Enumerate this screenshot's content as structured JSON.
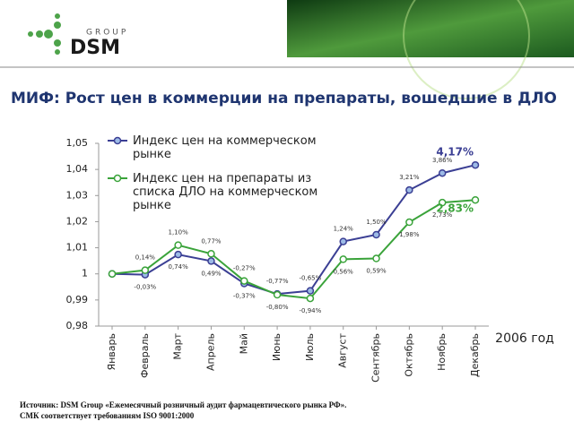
{
  "header": {
    "logo_small": "GROUP",
    "logo_big": "DSM"
  },
  "chart_data": {
    "type": "line",
    "title": "МИФ: Рост цен в коммерции на препараты, вошедшие в ДЛО",
    "categories": [
      "Январь",
      "Февраль",
      "Март",
      "Апрель",
      "Май",
      "Июнь",
      "Июль",
      "Август",
      "Сентябрь",
      "Октябрь",
      "Ноябрь",
      "Декабрь"
    ],
    "series": [
      {
        "name": "Индекс цен на коммерческом рынке",
        "color": "#3b3f94",
        "marker_fill": "#9dbbe6",
        "values": [
          1.0,
          0.9997,
          1.0074,
          1.0049,
          0.9963,
          0.9923,
          0.9935,
          1.0124,
          1.015,
          1.0321,
          1.0386,
          1.0417
        ],
        "value_labels": [
          null,
          "-0,03%",
          "0,74%",
          "0,49%",
          "-0,37%",
          "-0,77%",
          "-0,65%",
          "1,24%",
          "1,50%",
          "3,21%",
          "3,86%",
          "4,17%"
        ]
      },
      {
        "name": "Индекс цен на препараты из списка ДЛО на коммерческом рынке",
        "color": "#3aa33a",
        "marker_fill": "#ffffff",
        "values": [
          1.0,
          1.0014,
          1.011,
          1.0077,
          0.9973,
          0.992,
          0.9906,
          1.0056,
          1.0059,
          1.0198,
          1.0273,
          1.0283
        ],
        "value_labels": [
          null,
          "0,14%",
          "1,10%",
          "0,77%",
          "-0,27%",
          "-0,80%",
          "-0,94%",
          "0,56%",
          "0,59%",
          "1,98%",
          "2,73%",
          "2,83%"
        ]
      }
    ],
    "ylim": [
      0.98,
      1.05
    ],
    "yticks": [
      {
        "value": 0.98,
        "label": "0,98"
      },
      {
        "value": 0.99,
        "label": "0,99"
      },
      1,
      {
        "value": 1.01,
        "label": "1,01"
      },
      {
        "value": 1.02,
        "label": "1,02"
      },
      {
        "value": 1.03,
        "label": "1,03"
      },
      {
        "value": 1.04,
        "label": "1,04"
      },
      {
        "value": 1.05,
        "label": "1,05"
      }
    ],
    "annotation": "2006 год"
  },
  "footer": {
    "line1": "Источник: DSM Group «Ежемесячный розничный аудит фармацевтического рынка РФ».",
    "line2": "СМК соответствует требованиям ISO 9001:2000"
  }
}
